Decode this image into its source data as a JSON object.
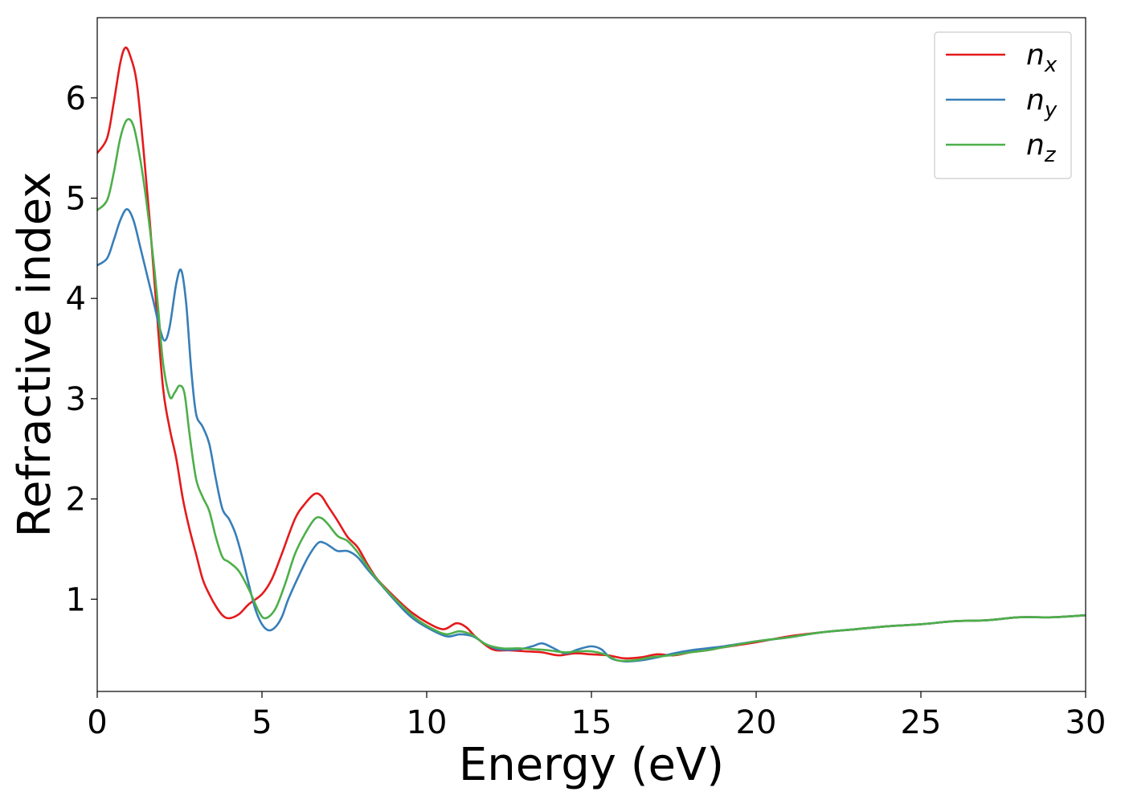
{
  "chart_data": {
    "type": "line",
    "title": "",
    "xlabel": "Energy (eV)",
    "ylabel": "Refractive index",
    "xlim": [
      0,
      30
    ],
    "ylim": [
      0.08,
      6.8
    ],
    "xticks": [
      0,
      5,
      10,
      15,
      20,
      25,
      30
    ],
    "yticks": [
      1,
      2,
      3,
      4,
      5,
      6
    ],
    "grid": false,
    "legend": {
      "position": "top-right"
    },
    "series": [
      {
        "name": "n",
        "subscript": "x",
        "color": "#e41a1c",
        "points": [
          [
            0,
            5.45
          ],
          [
            0.3,
            5.6
          ],
          [
            0.5,
            5.95
          ],
          [
            0.7,
            6.35
          ],
          [
            0.85,
            6.5
          ],
          [
            1.0,
            6.42
          ],
          [
            1.2,
            6.15
          ],
          [
            1.4,
            5.5
          ],
          [
            1.6,
            4.75
          ],
          [
            1.8,
            3.9
          ],
          [
            2.0,
            3.1
          ],
          [
            2.2,
            2.7
          ],
          [
            2.4,
            2.4
          ],
          [
            2.6,
            2.0
          ],
          [
            2.8,
            1.7
          ],
          [
            3.0,
            1.45
          ],
          [
            3.2,
            1.2
          ],
          [
            3.4,
            1.05
          ],
          [
            3.6,
            0.93
          ],
          [
            3.8,
            0.84
          ],
          [
            4.0,
            0.81
          ],
          [
            4.3,
            0.85
          ],
          [
            4.6,
            0.95
          ],
          [
            5.0,
            1.05
          ],
          [
            5.3,
            1.2
          ],
          [
            5.6,
            1.45
          ],
          [
            6.0,
            1.8
          ],
          [
            6.3,
            1.95
          ],
          [
            6.6,
            2.05
          ],
          [
            6.8,
            2.03
          ],
          [
            7.0,
            1.93
          ],
          [
            7.3,
            1.78
          ],
          [
            7.6,
            1.62
          ],
          [
            7.9,
            1.52
          ],
          [
            8.2,
            1.35
          ],
          [
            8.5,
            1.2
          ],
          [
            9.0,
            1.03
          ],
          [
            9.5,
            0.88
          ],
          [
            10.0,
            0.77
          ],
          [
            10.5,
            0.7
          ],
          [
            10.9,
            0.76
          ],
          [
            11.2,
            0.72
          ],
          [
            11.5,
            0.62
          ],
          [
            12.0,
            0.5
          ],
          [
            12.5,
            0.49
          ],
          [
            13.0,
            0.48
          ],
          [
            13.5,
            0.47
          ],
          [
            14.0,
            0.44
          ],
          [
            14.5,
            0.46
          ],
          [
            15.0,
            0.45
          ],
          [
            15.5,
            0.44
          ],
          [
            16.0,
            0.41
          ],
          [
            16.5,
            0.42
          ],
          [
            17.0,
            0.45
          ],
          [
            17.5,
            0.44
          ],
          [
            18.0,
            0.47
          ],
          [
            18.5,
            0.49
          ],
          [
            19.0,
            0.52
          ],
          [
            20.0,
            0.57
          ],
          [
            21.0,
            0.63
          ],
          [
            22.0,
            0.67
          ],
          [
            23.0,
            0.7
          ],
          [
            24.0,
            0.73
          ],
          [
            25.0,
            0.75
          ],
          [
            26.0,
            0.78
          ],
          [
            27.0,
            0.79
          ],
          [
            28.0,
            0.82
          ],
          [
            29.0,
            0.82
          ],
          [
            30.0,
            0.84
          ]
        ]
      },
      {
        "name": "n",
        "subscript": "y",
        "color": "#377eb8",
        "points": [
          [
            0,
            4.33
          ],
          [
            0.3,
            4.4
          ],
          [
            0.5,
            4.58
          ],
          [
            0.7,
            4.78
          ],
          [
            0.9,
            4.89
          ],
          [
            1.1,
            4.78
          ],
          [
            1.3,
            4.52
          ],
          [
            1.5,
            4.25
          ],
          [
            1.7,
            3.98
          ],
          [
            1.9,
            3.7
          ],
          [
            2.05,
            3.58
          ],
          [
            2.2,
            3.72
          ],
          [
            2.4,
            4.15
          ],
          [
            2.55,
            4.28
          ],
          [
            2.7,
            3.95
          ],
          [
            2.85,
            3.3
          ],
          [
            3.0,
            2.85
          ],
          [
            3.2,
            2.72
          ],
          [
            3.4,
            2.55
          ],
          [
            3.6,
            2.2
          ],
          [
            3.8,
            1.9
          ],
          [
            4.0,
            1.8
          ],
          [
            4.2,
            1.65
          ],
          [
            4.4,
            1.42
          ],
          [
            4.6,
            1.15
          ],
          [
            4.8,
            0.9
          ],
          [
            5.0,
            0.75
          ],
          [
            5.2,
            0.69
          ],
          [
            5.4,
            0.72
          ],
          [
            5.6,
            0.82
          ],
          [
            5.8,
            1.0
          ],
          [
            6.1,
            1.22
          ],
          [
            6.4,
            1.42
          ],
          [
            6.7,
            1.56
          ],
          [
            6.9,
            1.56
          ],
          [
            7.1,
            1.52
          ],
          [
            7.3,
            1.48
          ],
          [
            7.6,
            1.48
          ],
          [
            7.9,
            1.42
          ],
          [
            8.2,
            1.3
          ],
          [
            8.6,
            1.15
          ],
          [
            9.0,
            1.0
          ],
          [
            9.5,
            0.83
          ],
          [
            10.0,
            0.72
          ],
          [
            10.6,
            0.63
          ],
          [
            11.0,
            0.65
          ],
          [
            11.4,
            0.63
          ],
          [
            11.8,
            0.55
          ],
          [
            12.2,
            0.5
          ],
          [
            12.8,
            0.5
          ],
          [
            13.2,
            0.53
          ],
          [
            13.5,
            0.56
          ],
          [
            13.8,
            0.52
          ],
          [
            14.2,
            0.46
          ],
          [
            14.6,
            0.5
          ],
          [
            15.0,
            0.53
          ],
          [
            15.3,
            0.5
          ],
          [
            15.6,
            0.41
          ],
          [
            16.0,
            0.38
          ],
          [
            16.5,
            0.39
          ],
          [
            17.0,
            0.42
          ],
          [
            17.5,
            0.46
          ],
          [
            18.0,
            0.49
          ],
          [
            18.5,
            0.51
          ],
          [
            19.0,
            0.53
          ],
          [
            20.0,
            0.58
          ],
          [
            21.0,
            0.62
          ],
          [
            22.0,
            0.67
          ],
          [
            23.0,
            0.7
          ],
          [
            24.0,
            0.73
          ],
          [
            25.0,
            0.75
          ],
          [
            26.0,
            0.78
          ],
          [
            27.0,
            0.79
          ],
          [
            28.0,
            0.82
          ],
          [
            29.0,
            0.82
          ],
          [
            30.0,
            0.84
          ]
        ]
      },
      {
        "name": "n",
        "subscript": "z",
        "color": "#4daf4a",
        "points": [
          [
            0,
            4.88
          ],
          [
            0.3,
            4.98
          ],
          [
            0.5,
            5.25
          ],
          [
            0.7,
            5.6
          ],
          [
            0.9,
            5.78
          ],
          [
            1.1,
            5.72
          ],
          [
            1.3,
            5.4
          ],
          [
            1.5,
            4.95
          ],
          [
            1.7,
            4.4
          ],
          [
            1.85,
            3.9
          ],
          [
            2.0,
            3.35
          ],
          [
            2.2,
            3.02
          ],
          [
            2.35,
            3.06
          ],
          [
            2.5,
            3.13
          ],
          [
            2.65,
            3.05
          ],
          [
            2.8,
            2.65
          ],
          [
            3.0,
            2.2
          ],
          [
            3.2,
            2.02
          ],
          [
            3.4,
            1.88
          ],
          [
            3.6,
            1.62
          ],
          [
            3.8,
            1.42
          ],
          [
            4.0,
            1.37
          ],
          [
            4.3,
            1.28
          ],
          [
            4.6,
            1.1
          ],
          [
            4.9,
            0.88
          ],
          [
            5.1,
            0.81
          ],
          [
            5.4,
            0.9
          ],
          [
            5.7,
            1.15
          ],
          [
            6.0,
            1.45
          ],
          [
            6.3,
            1.65
          ],
          [
            6.6,
            1.8
          ],
          [
            6.8,
            1.81
          ],
          [
            7.0,
            1.75
          ],
          [
            7.3,
            1.63
          ],
          [
            7.6,
            1.58
          ],
          [
            7.9,
            1.47
          ],
          [
            8.3,
            1.28
          ],
          [
            8.7,
            1.12
          ],
          [
            9.2,
            0.95
          ],
          [
            9.7,
            0.8
          ],
          [
            10.2,
            0.7
          ],
          [
            10.6,
            0.65
          ],
          [
            11.0,
            0.68
          ],
          [
            11.4,
            0.64
          ],
          [
            11.8,
            0.55
          ],
          [
            12.3,
            0.51
          ],
          [
            12.8,
            0.51
          ],
          [
            13.3,
            0.5
          ],
          [
            13.7,
            0.49
          ],
          [
            14.2,
            0.47
          ],
          [
            14.6,
            0.48
          ],
          [
            15.0,
            0.48
          ],
          [
            15.4,
            0.45
          ],
          [
            15.8,
            0.39
          ],
          [
            16.3,
            0.39
          ],
          [
            16.8,
            0.42
          ],
          [
            17.4,
            0.44
          ],
          [
            18.0,
            0.47
          ],
          [
            18.5,
            0.49
          ],
          [
            19.0,
            0.52
          ],
          [
            20.0,
            0.58
          ],
          [
            21.0,
            0.62
          ],
          [
            22.0,
            0.67
          ],
          [
            23.0,
            0.7
          ],
          [
            24.0,
            0.73
          ],
          [
            25.0,
            0.75
          ],
          [
            26.0,
            0.78
          ],
          [
            27.0,
            0.79
          ],
          [
            28.0,
            0.82
          ],
          [
            29.0,
            0.82
          ],
          [
            30.0,
            0.84
          ]
        ]
      }
    ]
  }
}
